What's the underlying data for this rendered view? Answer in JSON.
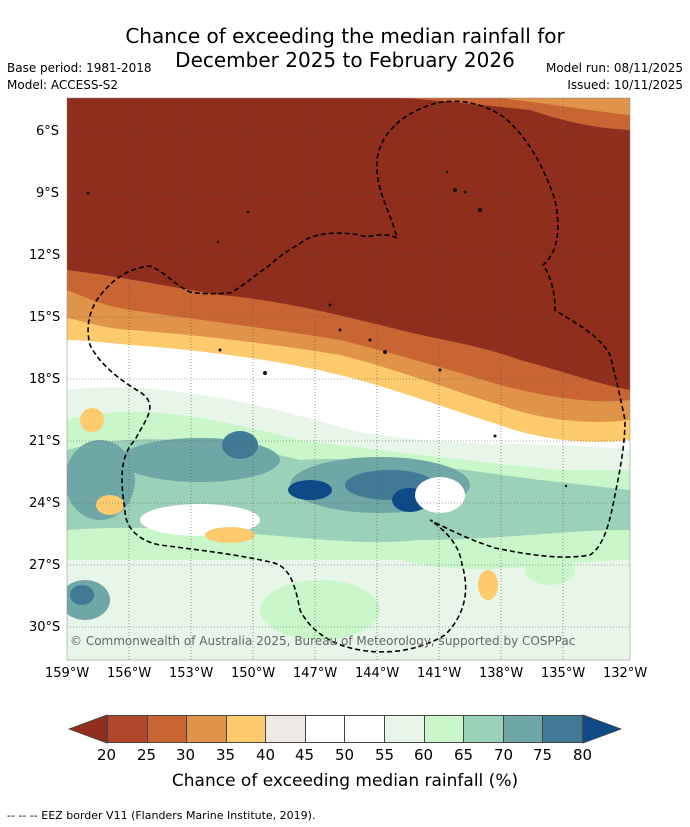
{
  "title_line1": "Chance of exceeding the median rainfall for",
  "title_line2": "December 2025 to February 2026",
  "meta": {
    "base_period": "Base period: 1981-2018",
    "model": "Model: ACCESS-S2",
    "model_run": "Model run: 08/11/2025",
    "issued": "Issued: 10/11/2025"
  },
  "lat_labels": [
    "6°S",
    "9°S",
    "12°S",
    "15°S",
    "18°S",
    "21°S",
    "24°S",
    "27°S",
    "30°S"
  ],
  "lon_labels": [
    "159°W",
    "156°W",
    "153°W",
    "150°W",
    "147°W",
    "144°W",
    "141°W",
    "138°W",
    "135°W",
    "132°W"
  ],
  "copyright": "© Commonwealth of Australia 2025, Bureau of Meteorology, supported by COSPPac",
  "colorbar": {
    "labels": [
      "20",
      "25",
      "30",
      "35",
      "40",
      "45",
      "50",
      "55",
      "60",
      "65",
      "70",
      "75",
      "80"
    ],
    "title": "Chance of exceeding median rainfall (%)",
    "colors": [
      "#8f2e1d",
      "#b0462a",
      "#c96533",
      "#e0944a",
      "#fdcb6e",
      "#eee9e5",
      "#ffffff",
      "#ffffff",
      "#e8f5e9",
      "#c9f7c9",
      "#9bd1b8",
      "#6fa6a6",
      "#427a95",
      "#0d4a87"
    ]
  },
  "footnote": "--  --  -- EEZ border V11 (Flanders Marine Institute, 2019).",
  "icons": [
    "colorbar-arrow-left-icon",
    "colorbar-arrow-right-icon"
  ]
}
